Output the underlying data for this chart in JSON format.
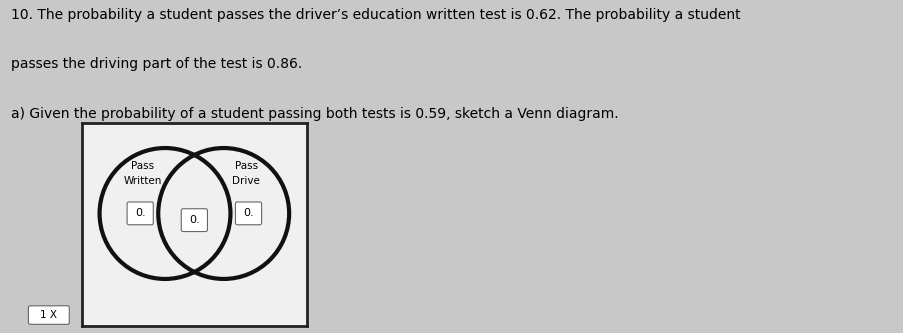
{
  "title_line1": "10. The probability a student passes the driver’s education written test is 0.62. The probability a student",
  "title_line2": "passes the driving part of the test is 0.86.",
  "subtitle": "a) Given the probability of a student passing both tests is 0.59, sketch a Venn diagram.",
  "left_label_line1": "Pass",
  "left_label_line2": "Written",
  "right_label_line1": "Pass",
  "right_label_line2": "Drive",
  "left_only_value": "0.",
  "both_value": "0.",
  "right_only_value": "0.",
  "bottom_label": "1 X",
  "bg_color": "#c8c8c8",
  "box_bg": "#ffffff",
  "diagram_bg": "#f0f0f0",
  "circle_color": "#111111",
  "text_color": "#000000",
  "border_color": "#222222",
  "title_fontsize": 10,
  "label_fontsize": 7.5,
  "value_fontsize": 8
}
